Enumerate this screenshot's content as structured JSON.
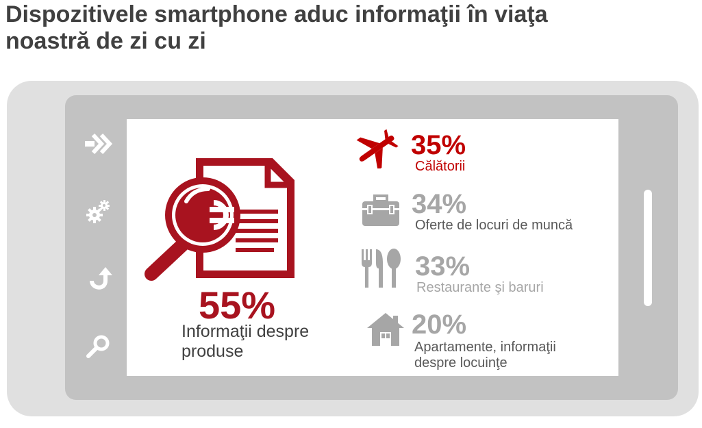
{
  "title": {
    "line1": "Dispozitivele smartphone aduc informaţii în viaţa",
    "line2": "noastră de zi cu zi"
  },
  "colors": {
    "accent": "#a8131f",
    "highlight": "#c00000",
    "muted": "#a6a6a6",
    "text": "#404040"
  },
  "side_icons": [
    "forward-arrows-icon",
    "gears-icon",
    "undo-arrow-icon",
    "search-icon"
  ],
  "main_stat": {
    "icon": "magnifier-document-icon",
    "percent": "55%",
    "label_line1": "Informaţii despre",
    "label_line2": "produse"
  },
  "stats": [
    {
      "icon": "airplane-icon",
      "percent": "35%",
      "label": "Călătorii"
    },
    {
      "icon": "briefcase-icon",
      "percent": "34%",
      "label": "Oferte de locuri de muncă"
    },
    {
      "icon": "cutlery-icon",
      "percent": "33%",
      "label": "Restaurante şi baruri"
    },
    {
      "icon": "house-icon",
      "percent": "20%",
      "label_line1": "Apartamente, informaţii",
      "label_line2": "despre locuinţe"
    }
  ]
}
